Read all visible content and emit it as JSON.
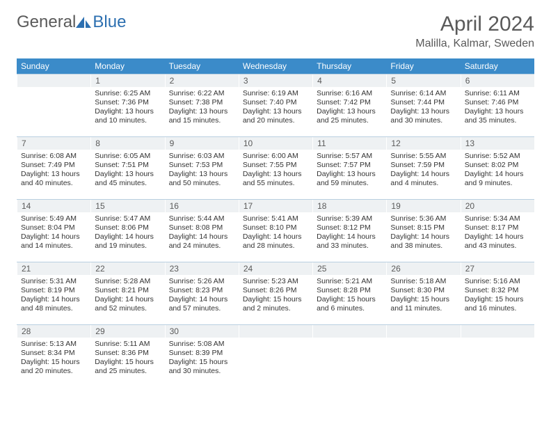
{
  "logo": {
    "text1": "General",
    "text2": "Blue"
  },
  "title": "April 2024",
  "location": "Malilla, Kalmar, Sweden",
  "weekdays": [
    "Sunday",
    "Monday",
    "Tuesday",
    "Wednesday",
    "Thursday",
    "Friday",
    "Saturday"
  ],
  "colors": {
    "header_bg": "#3b8bc9",
    "header_text": "#ffffff",
    "daynum_bg": "#eef1f3",
    "border": "#b9cfe0",
    "logo_gray": "#5a5a5a",
    "logo_blue": "#2c6fb0"
  },
  "start_offset": 1,
  "days": [
    {
      "n": 1,
      "sr": "6:25 AM",
      "ss": "7:36 PM",
      "dl": "13 hours and 10 minutes."
    },
    {
      "n": 2,
      "sr": "6:22 AM",
      "ss": "7:38 PM",
      "dl": "13 hours and 15 minutes."
    },
    {
      "n": 3,
      "sr": "6:19 AM",
      "ss": "7:40 PM",
      "dl": "13 hours and 20 minutes."
    },
    {
      "n": 4,
      "sr": "6:16 AM",
      "ss": "7:42 PM",
      "dl": "13 hours and 25 minutes."
    },
    {
      "n": 5,
      "sr": "6:14 AM",
      "ss": "7:44 PM",
      "dl": "13 hours and 30 minutes."
    },
    {
      "n": 6,
      "sr": "6:11 AM",
      "ss": "7:46 PM",
      "dl": "13 hours and 35 minutes."
    },
    {
      "n": 7,
      "sr": "6:08 AM",
      "ss": "7:49 PM",
      "dl": "13 hours and 40 minutes."
    },
    {
      "n": 8,
      "sr": "6:05 AM",
      "ss": "7:51 PM",
      "dl": "13 hours and 45 minutes."
    },
    {
      "n": 9,
      "sr": "6:03 AM",
      "ss": "7:53 PM",
      "dl": "13 hours and 50 minutes."
    },
    {
      "n": 10,
      "sr": "6:00 AM",
      "ss": "7:55 PM",
      "dl": "13 hours and 55 minutes."
    },
    {
      "n": 11,
      "sr": "5:57 AM",
      "ss": "7:57 PM",
      "dl": "13 hours and 59 minutes."
    },
    {
      "n": 12,
      "sr": "5:55 AM",
      "ss": "7:59 PM",
      "dl": "14 hours and 4 minutes."
    },
    {
      "n": 13,
      "sr": "5:52 AM",
      "ss": "8:02 PM",
      "dl": "14 hours and 9 minutes."
    },
    {
      "n": 14,
      "sr": "5:49 AM",
      "ss": "8:04 PM",
      "dl": "14 hours and 14 minutes."
    },
    {
      "n": 15,
      "sr": "5:47 AM",
      "ss": "8:06 PM",
      "dl": "14 hours and 19 minutes."
    },
    {
      "n": 16,
      "sr": "5:44 AM",
      "ss": "8:08 PM",
      "dl": "14 hours and 24 minutes."
    },
    {
      "n": 17,
      "sr": "5:41 AM",
      "ss": "8:10 PM",
      "dl": "14 hours and 28 minutes."
    },
    {
      "n": 18,
      "sr": "5:39 AM",
      "ss": "8:12 PM",
      "dl": "14 hours and 33 minutes."
    },
    {
      "n": 19,
      "sr": "5:36 AM",
      "ss": "8:15 PM",
      "dl": "14 hours and 38 minutes."
    },
    {
      "n": 20,
      "sr": "5:34 AM",
      "ss": "8:17 PM",
      "dl": "14 hours and 43 minutes."
    },
    {
      "n": 21,
      "sr": "5:31 AM",
      "ss": "8:19 PM",
      "dl": "14 hours and 48 minutes."
    },
    {
      "n": 22,
      "sr": "5:28 AM",
      "ss": "8:21 PM",
      "dl": "14 hours and 52 minutes."
    },
    {
      "n": 23,
      "sr": "5:26 AM",
      "ss": "8:23 PM",
      "dl": "14 hours and 57 minutes."
    },
    {
      "n": 24,
      "sr": "5:23 AM",
      "ss": "8:26 PM",
      "dl": "15 hours and 2 minutes."
    },
    {
      "n": 25,
      "sr": "5:21 AM",
      "ss": "8:28 PM",
      "dl": "15 hours and 6 minutes."
    },
    {
      "n": 26,
      "sr": "5:18 AM",
      "ss": "8:30 PM",
      "dl": "15 hours and 11 minutes."
    },
    {
      "n": 27,
      "sr": "5:16 AM",
      "ss": "8:32 PM",
      "dl": "15 hours and 16 minutes."
    },
    {
      "n": 28,
      "sr": "5:13 AM",
      "ss": "8:34 PM",
      "dl": "15 hours and 20 minutes."
    },
    {
      "n": 29,
      "sr": "5:11 AM",
      "ss": "8:36 PM",
      "dl": "15 hours and 25 minutes."
    },
    {
      "n": 30,
      "sr": "5:08 AM",
      "ss": "8:39 PM",
      "dl": "15 hours and 30 minutes."
    }
  ],
  "labels": {
    "sunrise": "Sunrise:",
    "sunset": "Sunset:",
    "daylight": "Daylight:"
  }
}
